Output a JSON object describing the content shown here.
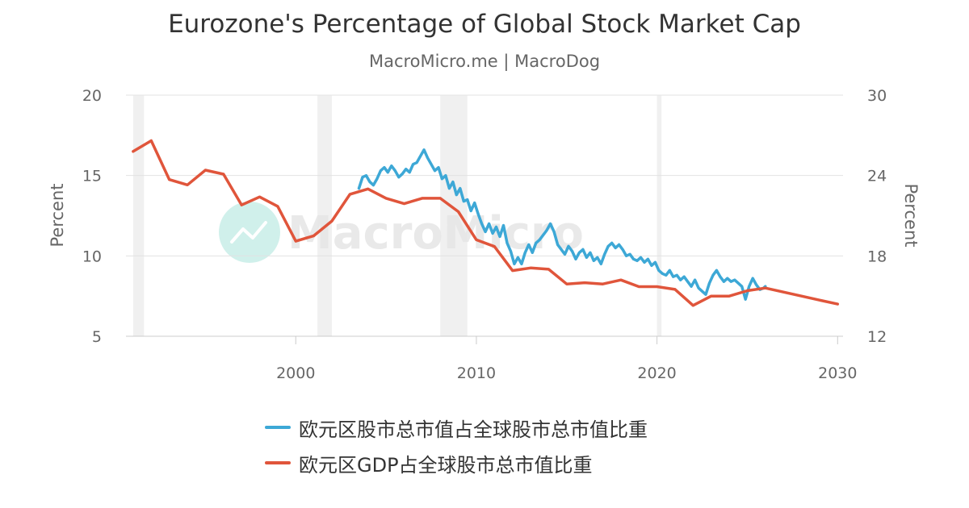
{
  "header": {
    "title": "Eurozone's Percentage of Global Stock Market Cap",
    "subtitle": "MacroMicro.me | MacroDog"
  },
  "watermark": {
    "text": "MacroMicro",
    "icon": "macromicro-logo-icon"
  },
  "colors": {
    "series_blue": "#3da8d6",
    "series_red": "#e0553b",
    "recession_band": "#f0f0f0",
    "grid": "#e3e3e3",
    "axis_text": "#666666"
  },
  "chart_data": {
    "type": "line",
    "title": "Eurozone's Percentage of Global Stock Market Cap",
    "subtitle": "MacroMicro.me | MacroDog",
    "x_axis": {
      "range": [
        1990.6,
        2030.3
      ],
      "ticks": [
        2000,
        2010,
        2020,
        2030
      ]
    },
    "y_left": {
      "label": "Percent",
      "range": [
        5,
        20
      ],
      "ticks": [
        5,
        10,
        15,
        20
      ]
    },
    "y_right": {
      "label": "Percent",
      "range": [
        12,
        30
      ],
      "ticks": [
        12,
        18,
        24,
        30
      ]
    },
    "grid": true,
    "legend_position": "bottom",
    "recession_shading": [
      [
        1991.0,
        1991.6
      ],
      [
        2001.2,
        2002.0
      ],
      [
        2008.0,
        2009.5
      ],
      [
        2020.0,
        2020.25
      ]
    ],
    "series": [
      {
        "name": "欧元区股市总市值占全球股市总市值比重",
        "axis": "left",
        "color": "#3da8d6",
        "points": [
          [
            2003.5,
            14.2
          ],
          [
            2003.7,
            14.9
          ],
          [
            2003.9,
            15.0
          ],
          [
            2004.1,
            14.6
          ],
          [
            2004.3,
            14.4
          ],
          [
            2004.5,
            14.8
          ],
          [
            2004.7,
            15.3
          ],
          [
            2004.9,
            15.5
          ],
          [
            2005.1,
            15.2
          ],
          [
            2005.3,
            15.6
          ],
          [
            2005.5,
            15.3
          ],
          [
            2005.7,
            14.9
          ],
          [
            2005.9,
            15.1
          ],
          [
            2006.1,
            15.4
          ],
          [
            2006.3,
            15.2
          ],
          [
            2006.5,
            15.7
          ],
          [
            2006.7,
            15.8
          ],
          [
            2006.9,
            16.2
          ],
          [
            2007.1,
            16.6
          ],
          [
            2007.3,
            16.1
          ],
          [
            2007.5,
            15.7
          ],
          [
            2007.7,
            15.3
          ],
          [
            2007.9,
            15.5
          ],
          [
            2008.1,
            14.8
          ],
          [
            2008.3,
            15.0
          ],
          [
            2008.5,
            14.2
          ],
          [
            2008.7,
            14.6
          ],
          [
            2008.9,
            13.8
          ],
          [
            2009.1,
            14.2
          ],
          [
            2009.3,
            13.4
          ],
          [
            2009.5,
            13.5
          ],
          [
            2009.7,
            12.8
          ],
          [
            2009.9,
            13.3
          ],
          [
            2010.1,
            12.6
          ],
          [
            2010.3,
            12.0
          ],
          [
            2010.5,
            11.5
          ],
          [
            2010.7,
            12.0
          ],
          [
            2010.9,
            11.4
          ],
          [
            2011.1,
            11.8
          ],
          [
            2011.3,
            11.2
          ],
          [
            2011.5,
            11.9
          ],
          [
            2011.7,
            10.8
          ],
          [
            2011.9,
            10.3
          ],
          [
            2012.1,
            9.5
          ],
          [
            2012.3,
            9.9
          ],
          [
            2012.5,
            9.5
          ],
          [
            2012.7,
            10.2
          ],
          [
            2012.9,
            10.7
          ],
          [
            2013.1,
            10.2
          ],
          [
            2013.3,
            10.8
          ],
          [
            2013.5,
            11.0
          ],
          [
            2013.7,
            11.3
          ],
          [
            2013.9,
            11.6
          ],
          [
            2014.1,
            12.0
          ],
          [
            2014.3,
            11.5
          ],
          [
            2014.5,
            10.7
          ],
          [
            2014.7,
            10.4
          ],
          [
            2014.9,
            10.1
          ],
          [
            2015.1,
            10.6
          ],
          [
            2015.3,
            10.3
          ],
          [
            2015.5,
            9.8
          ],
          [
            2015.7,
            10.2
          ],
          [
            2015.9,
            10.4
          ],
          [
            2016.1,
            9.9
          ],
          [
            2016.3,
            10.2
          ],
          [
            2016.5,
            9.7
          ],
          [
            2016.7,
            9.9
          ],
          [
            2016.9,
            9.5
          ],
          [
            2017.1,
            10.1
          ],
          [
            2017.3,
            10.6
          ],
          [
            2017.5,
            10.8
          ],
          [
            2017.7,
            10.5
          ],
          [
            2017.9,
            10.7
          ],
          [
            2018.1,
            10.4
          ],
          [
            2018.3,
            10.0
          ],
          [
            2018.5,
            10.1
          ],
          [
            2018.7,
            9.8
          ],
          [
            2018.9,
            9.7
          ],
          [
            2019.1,
            9.9
          ],
          [
            2019.3,
            9.6
          ],
          [
            2019.5,
            9.8
          ],
          [
            2019.7,
            9.4
          ],
          [
            2019.9,
            9.6
          ],
          [
            2020.1,
            9.1
          ],
          [
            2020.3,
            8.9
          ],
          [
            2020.5,
            8.8
          ],
          [
            2020.7,
            9.1
          ],
          [
            2020.9,
            8.7
          ],
          [
            2021.1,
            8.8
          ],
          [
            2021.3,
            8.5
          ],
          [
            2021.5,
            8.7
          ],
          [
            2021.7,
            8.4
          ],
          [
            2021.9,
            8.1
          ],
          [
            2022.1,
            8.5
          ],
          [
            2022.3,
            8.0
          ],
          [
            2022.5,
            7.8
          ],
          [
            2022.7,
            7.6
          ],
          [
            2022.9,
            8.3
          ],
          [
            2023.1,
            8.8
          ],
          [
            2023.3,
            9.1
          ],
          [
            2023.5,
            8.7
          ],
          [
            2023.7,
            8.4
          ],
          [
            2023.9,
            8.6
          ],
          [
            2024.1,
            8.4
          ],
          [
            2024.3,
            8.5
          ],
          [
            2024.5,
            8.3
          ],
          [
            2024.7,
            8.1
          ],
          [
            2024.9,
            7.3
          ],
          [
            2025.1,
            8.1
          ],
          [
            2025.3,
            8.6
          ],
          [
            2025.5,
            8.2
          ],
          [
            2025.7,
            7.9
          ],
          [
            2025.9,
            8.0
          ],
          [
            2026.0,
            8.1
          ]
        ]
      },
      {
        "name": "欧元区GDP占全球股市总市值比重",
        "axis": "right",
        "color": "#e0553b",
        "points": [
          [
            1991.0,
            25.8
          ],
          [
            1992.0,
            26.6
          ],
          [
            1993.0,
            23.7
          ],
          [
            1994.0,
            23.3
          ],
          [
            1995.0,
            24.4
          ],
          [
            1996.0,
            24.1
          ],
          [
            1997.0,
            21.8
          ],
          [
            1998.0,
            22.4
          ],
          [
            1999.0,
            21.7
          ],
          [
            2000.0,
            19.1
          ],
          [
            2001.0,
            19.5
          ],
          [
            2002.0,
            20.6
          ],
          [
            2003.0,
            22.6
          ],
          [
            2004.0,
            23.0
          ],
          [
            2005.0,
            22.3
          ],
          [
            2006.0,
            21.9
          ],
          [
            2007.0,
            22.3
          ],
          [
            2008.0,
            22.3
          ],
          [
            2009.0,
            21.3
          ],
          [
            2010.0,
            19.2
          ],
          [
            2011.0,
            18.7
          ],
          [
            2012.0,
            16.9
          ],
          [
            2013.0,
            17.1
          ],
          [
            2014.0,
            17.0
          ],
          [
            2015.0,
            15.9
          ],
          [
            2016.0,
            16.0
          ],
          [
            2017.0,
            15.9
          ],
          [
            2018.0,
            16.2
          ],
          [
            2019.0,
            15.7
          ],
          [
            2020.0,
            15.7
          ],
          [
            2021.0,
            15.5
          ],
          [
            2022.0,
            14.3
          ],
          [
            2023.0,
            15.0
          ],
          [
            2024.0,
            15.0
          ],
          [
            2025.0,
            15.4
          ],
          [
            2026.0,
            15.6
          ],
          [
            2027.0,
            15.3
          ],
          [
            2028.0,
            15.0
          ],
          [
            2029.0,
            14.7
          ],
          [
            2030.0,
            14.4
          ]
        ]
      }
    ]
  }
}
